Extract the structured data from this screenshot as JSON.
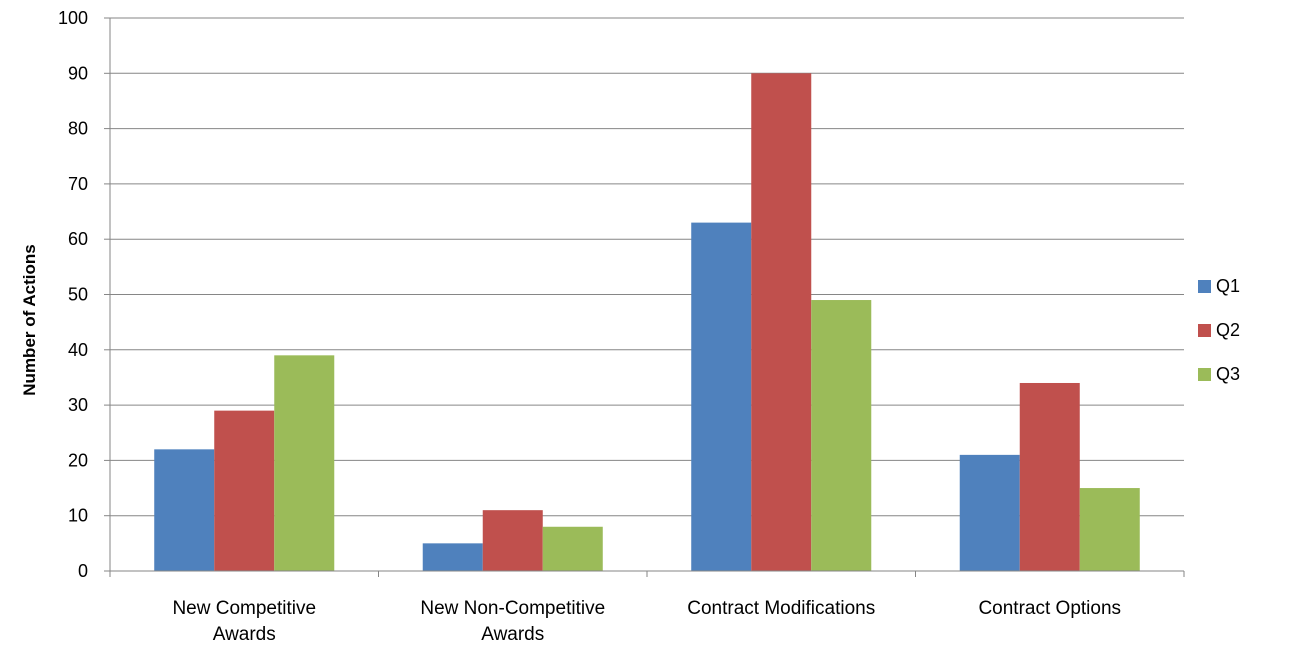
{
  "chart_data": {
    "type": "bar",
    "title": "",
    "xlabel": "",
    "ylabel": "Number of Actions",
    "ylim": [
      0,
      100
    ],
    "yticks": [
      0,
      10,
      20,
      30,
      40,
      50,
      60,
      70,
      80,
      90,
      100
    ],
    "grid": true,
    "legend_position": "right",
    "categories": [
      [
        "New Competitive",
        "Awards"
      ],
      [
        "New Non-Competitive",
        "Awards"
      ],
      [
        "Contract Modifications"
      ],
      [
        "Contract Options"
      ]
    ],
    "series": [
      {
        "name": "Q1",
        "color": "#4F81BD",
        "values": [
          22,
          5,
          63,
          21
        ]
      },
      {
        "name": "Q2",
        "color": "#C0504D",
        "values": [
          29,
          11,
          90,
          34
        ]
      },
      {
        "name": "Q3",
        "color": "#9BBB59",
        "values": [
          39,
          8,
          49,
          15
        ]
      }
    ]
  }
}
